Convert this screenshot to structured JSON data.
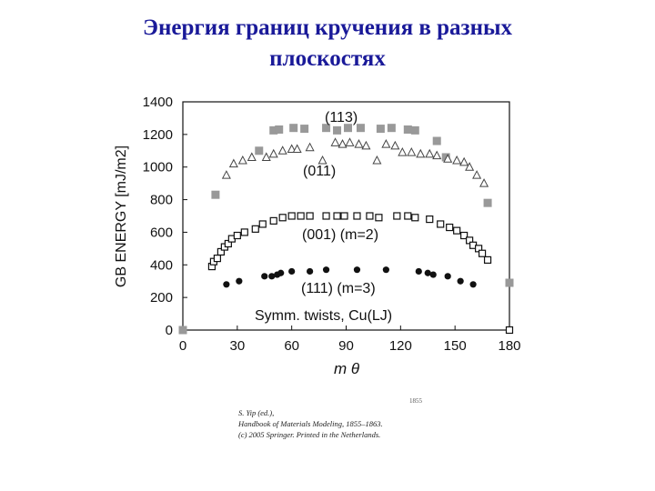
{
  "slide": {
    "title_line1": "Энергия границ кручения в разных",
    "title_line2": "плоскостях"
  },
  "chart_data": {
    "type": "scatter",
    "title": "",
    "xlabel": "m θ",
    "ylabel": "GB ENERGY [mJ/m2]",
    "xlim": [
      0,
      180
    ],
    "ylim": [
      0,
      1400
    ],
    "xticks": [
      "0",
      "30",
      "60",
      "90",
      "120",
      "150",
      "180"
    ],
    "yticks": [
      "0",
      "200",
      "400",
      "600",
      "800",
      "1000",
      "1200",
      "1400"
    ],
    "annotations": [
      "(113)",
      "(011)",
      "(001) (m=2)",
      "(111) (m=3)",
      "Symm. twists, Cu(LJ)"
    ],
    "series": [
      {
        "name": "(113)",
        "marker": "filled-square",
        "color": "#999999",
        "x": [
          0,
          18,
          42,
          50,
          53,
          61,
          67,
          79,
          85,
          91,
          98,
          109,
          115,
          124,
          128,
          140,
          145,
          168,
          180
        ],
        "y": [
          0,
          830,
          1100,
          1225,
          1230,
          1240,
          1235,
          1240,
          1225,
          1240,
          1240,
          1235,
          1240,
          1230,
          1225,
          1160,
          1060,
          780,
          290
        ]
      },
      {
        "name": "(011)",
        "marker": "open-triangle",
        "color": "#444444",
        "x": [
          24,
          28,
          33,
          38,
          46,
          50,
          55,
          60,
          63,
          70,
          77,
          84,
          88,
          92,
          97,
          101,
          107,
          112,
          117,
          121,
          126,
          131,
          136,
          140,
          146,
          151,
          155,
          158,
          162,
          166
        ],
        "y": [
          950,
          1020,
          1040,
          1060,
          1060,
          1080,
          1100,
          1110,
          1110,
          1120,
          1040,
          1150,
          1140,
          1150,
          1140,
          1130,
          1040,
          1140,
          1130,
          1090,
          1090,
          1080,
          1080,
          1070,
          1050,
          1040,
          1030,
          1000,
          950,
          900
        ]
      },
      {
        "name": "(001) (m=2)",
        "marker": "open-square",
        "color": "#111111",
        "x": [
          16,
          17,
          19,
          21,
          23,
          25,
          27,
          30,
          34,
          40,
          44,
          50,
          55,
          60,
          65,
          70,
          79,
          85,
          89,
          96,
          103,
          108,
          118,
          124,
          128,
          136,
          142,
          147,
          151,
          155,
          158,
          160,
          163,
          165,
          168,
          180
        ],
        "y": [
          390,
          420,
          440,
          480,
          510,
          530,
          560,
          580,
          600,
          620,
          650,
          670,
          690,
          700,
          700,
          700,
          700,
          700,
          700,
          700,
          700,
          690,
          700,
          700,
          690,
          680,
          650,
          630,
          610,
          580,
          550,
          520,
          500,
          470,
          430,
          0
        ]
      },
      {
        "name": "(111) (m=3)",
        "marker": "filled-circle",
        "color": "#111111",
        "x": [
          24,
          31,
          45,
          49,
          52,
          54,
          60,
          70,
          79,
          96,
          112,
          130,
          135,
          138,
          146,
          153,
          160
        ],
        "y": [
          280,
          300,
          330,
          330,
          340,
          350,
          360,
          360,
          370,
          370,
          370,
          360,
          350,
          340,
          330,
          300,
          280
        ]
      }
    ]
  },
  "citation": {
    "line1": "S. Yip (ed.),",
    "line2": "Handbook of Materials Modeling, 1855–1863.",
    "line3": "(c) 2005 Springer. Printed in the Netherlands."
  },
  "page_mark": "1855"
}
